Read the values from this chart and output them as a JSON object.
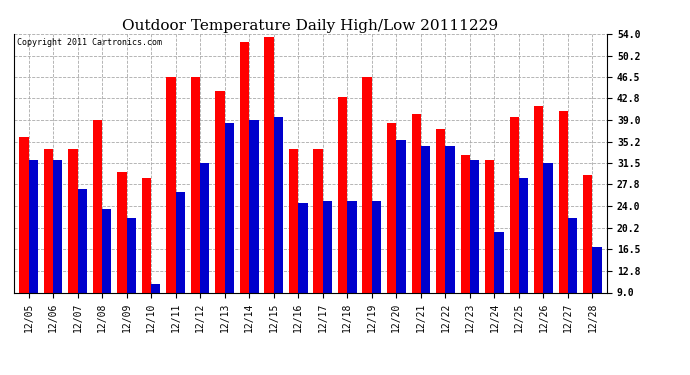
{
  "title": "Outdoor Temperature Daily High/Low 20111229",
  "copyright": "Copyright 2011 Cartronics.com",
  "dates": [
    "12/05",
    "12/06",
    "12/07",
    "12/08",
    "12/09",
    "12/10",
    "12/11",
    "12/12",
    "12/13",
    "12/14",
    "12/15",
    "12/16",
    "12/17",
    "12/18",
    "12/19",
    "12/20",
    "12/21",
    "12/22",
    "12/23",
    "12/24",
    "12/25",
    "12/26",
    "12/27",
    "12/28"
  ],
  "highs": [
    36.0,
    34.0,
    34.0,
    39.0,
    30.0,
    29.0,
    46.5,
    46.5,
    44.0,
    52.5,
    53.5,
    34.0,
    34.0,
    43.0,
    46.5,
    38.5,
    40.0,
    37.5,
    33.0,
    32.0,
    39.5,
    41.5,
    40.5,
    29.5
  ],
  "lows": [
    32.0,
    32.0,
    27.0,
    23.5,
    22.0,
    10.5,
    26.5,
    31.5,
    38.5,
    39.0,
    39.5,
    24.5,
    25.0,
    25.0,
    25.0,
    35.5,
    34.5,
    34.5,
    32.0,
    19.5,
    29.0,
    31.5,
    22.0,
    17.0
  ],
  "ylim_min": 9.0,
  "ylim_max": 54.0,
  "yticks": [
    9.0,
    12.8,
    16.5,
    20.2,
    24.0,
    27.8,
    31.5,
    35.2,
    39.0,
    42.8,
    46.5,
    50.2,
    54.0
  ],
  "high_color": "#ff0000",
  "low_color": "#0000cc",
  "bg_color": "#ffffff",
  "grid_color": "#aaaaaa",
  "title_fontsize": 11,
  "copyright_fontsize": 6,
  "tick_fontsize": 7,
  "bar_width": 0.38
}
